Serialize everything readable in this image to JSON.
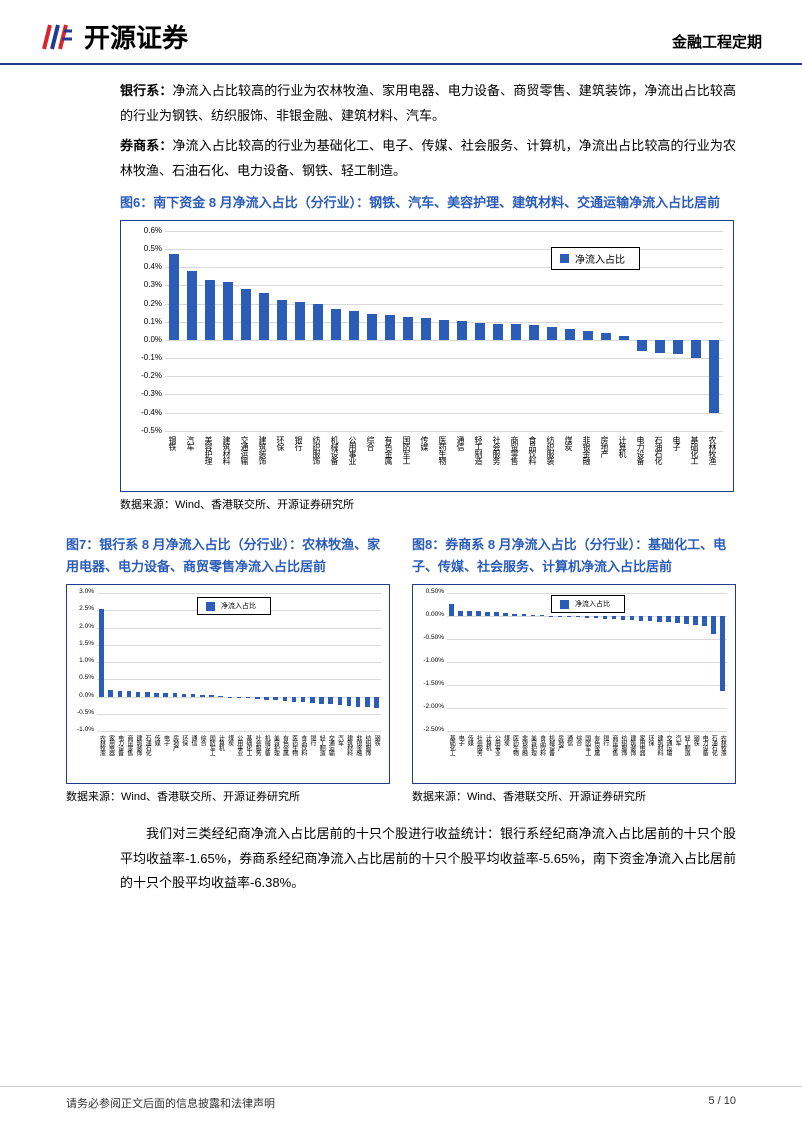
{
  "header": {
    "company": "开源证券",
    "domain": "金融工程定期"
  },
  "p1": {
    "b": "银行系：",
    "t": "净流入占比较高的行业为农林牧渔、家用电器、电力设备、商贸零售、建筑装饰，净流出占比较高的行业为钢铁、纺织服饰、非银金融、建筑材料、汽车。"
  },
  "p2": {
    "b": "券商系：",
    "t": "净流入占比较高的行业为基础化工、电子、传媒、社会服务、计算机，净流出占比较高的行业为农林牧渔、石油石化、电力设备、钢铁、轻工制造。"
  },
  "fig6": {
    "title": "图6：南下资金 8 月净流入占比（分行业）：钢铁、汽车、美容护理、建筑材料、交通运输净流入占比居前",
    "legend": "净流入占比",
    "source": "数据来源：Wind、香港联交所、开源证券研究所",
    "bar_color": "#2b5cb8",
    "grid_color": "#d9d9d9",
    "yticks": [
      "-0.5%",
      "-0.4%",
      "-0.3%",
      "-0.2%",
      "-0.1%",
      "0.0%",
      "0.1%",
      "0.2%",
      "0.3%",
      "0.4%",
      "0.5%",
      "0.6%"
    ],
    "ylim": [
      -0.5,
      0.6
    ],
    "categories": [
      "钢铁",
      "汽车",
      "美容护理",
      "建筑材料",
      "交通运输",
      "建筑装饰",
      "环保",
      "银行",
      "纺织服饰",
      "机械设备",
      "公用事业",
      "综合",
      "有色金属",
      "国防军工",
      "传媒",
      "医药生物",
      "通信",
      "轻工制造",
      "社会服务",
      "商贸零售",
      "食品饮料",
      "纺织服装",
      "煤炭",
      "非银金融",
      "房地产",
      "计算机",
      "电力设备",
      "石油石化",
      "电子",
      "基础化工",
      "农林牧渔"
    ],
    "values": [
      0.47,
      0.38,
      0.33,
      0.32,
      0.28,
      0.26,
      0.22,
      0.21,
      0.2,
      0.17,
      0.16,
      0.145,
      0.135,
      0.125,
      0.12,
      0.11,
      0.105,
      0.095,
      0.09,
      0.085,
      0.08,
      0.07,
      0.06,
      0.05,
      0.04,
      0.02,
      -0.06,
      -0.07,
      -0.08,
      -0.1,
      -0.4
    ]
  },
  "fig7": {
    "title": "图7：银行系 8 月净流入占比（分行业）：农林牧渔、家用电器、电力设备、商贸零售净流入占比居前",
    "legend": "净流入占比",
    "source": "数据来源：Wind、香港联交所、开源证券研究所",
    "bar_color": "#2b5cb8",
    "yticks": [
      "-1.0%",
      "-0.5%",
      "0.0%",
      "0.5%",
      "1.0%",
      "1.5%",
      "2.0%",
      "2.5%",
      "3.0%"
    ],
    "ylim": [
      -1.0,
      3.0
    ],
    "categories": [
      "农林牧渔",
      "家用电器",
      "电力设备",
      "商贸零售",
      "建筑装饰",
      "石油石化",
      "传媒",
      "电子",
      "房地产",
      "环保",
      "通信",
      "综合",
      "国防军工",
      "计算机",
      "煤炭",
      "公用事业",
      "基础化工",
      "社会服务",
      "机械设备",
      "美容护理",
      "有色金属",
      "医药生物",
      "食品饮料",
      "银行",
      "轻工制造",
      "交通运输",
      "汽车",
      "建筑材料",
      "非银金融",
      "纺织服饰",
      "钢铁"
    ],
    "values": [
      2.55,
      0.18,
      0.16,
      0.15,
      0.13,
      0.12,
      0.11,
      0.1,
      0.09,
      0.08,
      0.07,
      0.05,
      0.03,
      0.01,
      -0.01,
      -0.03,
      -0.05,
      -0.07,
      -0.09,
      -0.11,
      -0.13,
      -0.15,
      -0.17,
      -0.19,
      -0.21,
      -0.23,
      -0.25,
      -0.27,
      -0.29,
      -0.31,
      -0.33
    ]
  },
  "fig8": {
    "title": "图8：券商系 8 月净流入占比（分行业）：基础化工、电子、传媒、社会服务、计算机净流入占比居前",
    "legend": "净流入占比",
    "source": "数据来源：Wind、香港联交所、开源证券研究所",
    "bar_color": "#2b5cb8",
    "yticks": [
      "-2.50%",
      "-2.00%",
      "-1.50%",
      "-1.00%",
      "-0.50%",
      "0.00%",
      "0.50%"
    ],
    "ylim": [
      -2.5,
      0.5
    ],
    "categories": [
      "基础化工",
      "电子",
      "传媒",
      "社会服务",
      "计算机",
      "公用事业",
      "煤炭",
      "医药生物",
      "非银金融",
      "美容护理",
      "食品饮料",
      "机械设备",
      "房地产",
      "通信",
      "综合",
      "国防军工",
      "有色金属",
      "银行",
      "商贸零售",
      "纺织服饰",
      "建筑装饰",
      "家用电器",
      "环保",
      "建筑材料",
      "交通运输",
      "汽车",
      "轻工制造",
      "钢铁",
      "电力设备",
      "石油石化",
      "农林牧渔"
    ],
    "values": [
      0.26,
      0.12,
      0.11,
      0.1,
      0.09,
      0.08,
      0.06,
      0.05,
      0.04,
      0.03,
      0.02,
      0.01,
      -0.01,
      -0.02,
      -0.03,
      -0.04,
      -0.05,
      -0.06,
      -0.07,
      -0.08,
      -0.09,
      -0.1,
      -0.11,
      -0.12,
      -0.14,
      -0.16,
      -0.18,
      -0.2,
      -0.22,
      -0.38,
      -1.62
    ]
  },
  "p3": "我们对三类经纪商净流入占比居前的十只个股进行收益统计：银行系经纪商净流入占比居前的十只个股平均收益率-1.65%，券商系经纪商净流入占比居前的十只个股平均收益率-5.65%，南下资金净流入占比居前的十只个股平均收益率-6.38%。",
  "footer": {
    "disclaimer": "请务必参阅正文后面的信息披露和法律声明",
    "page": "5 / 10"
  }
}
